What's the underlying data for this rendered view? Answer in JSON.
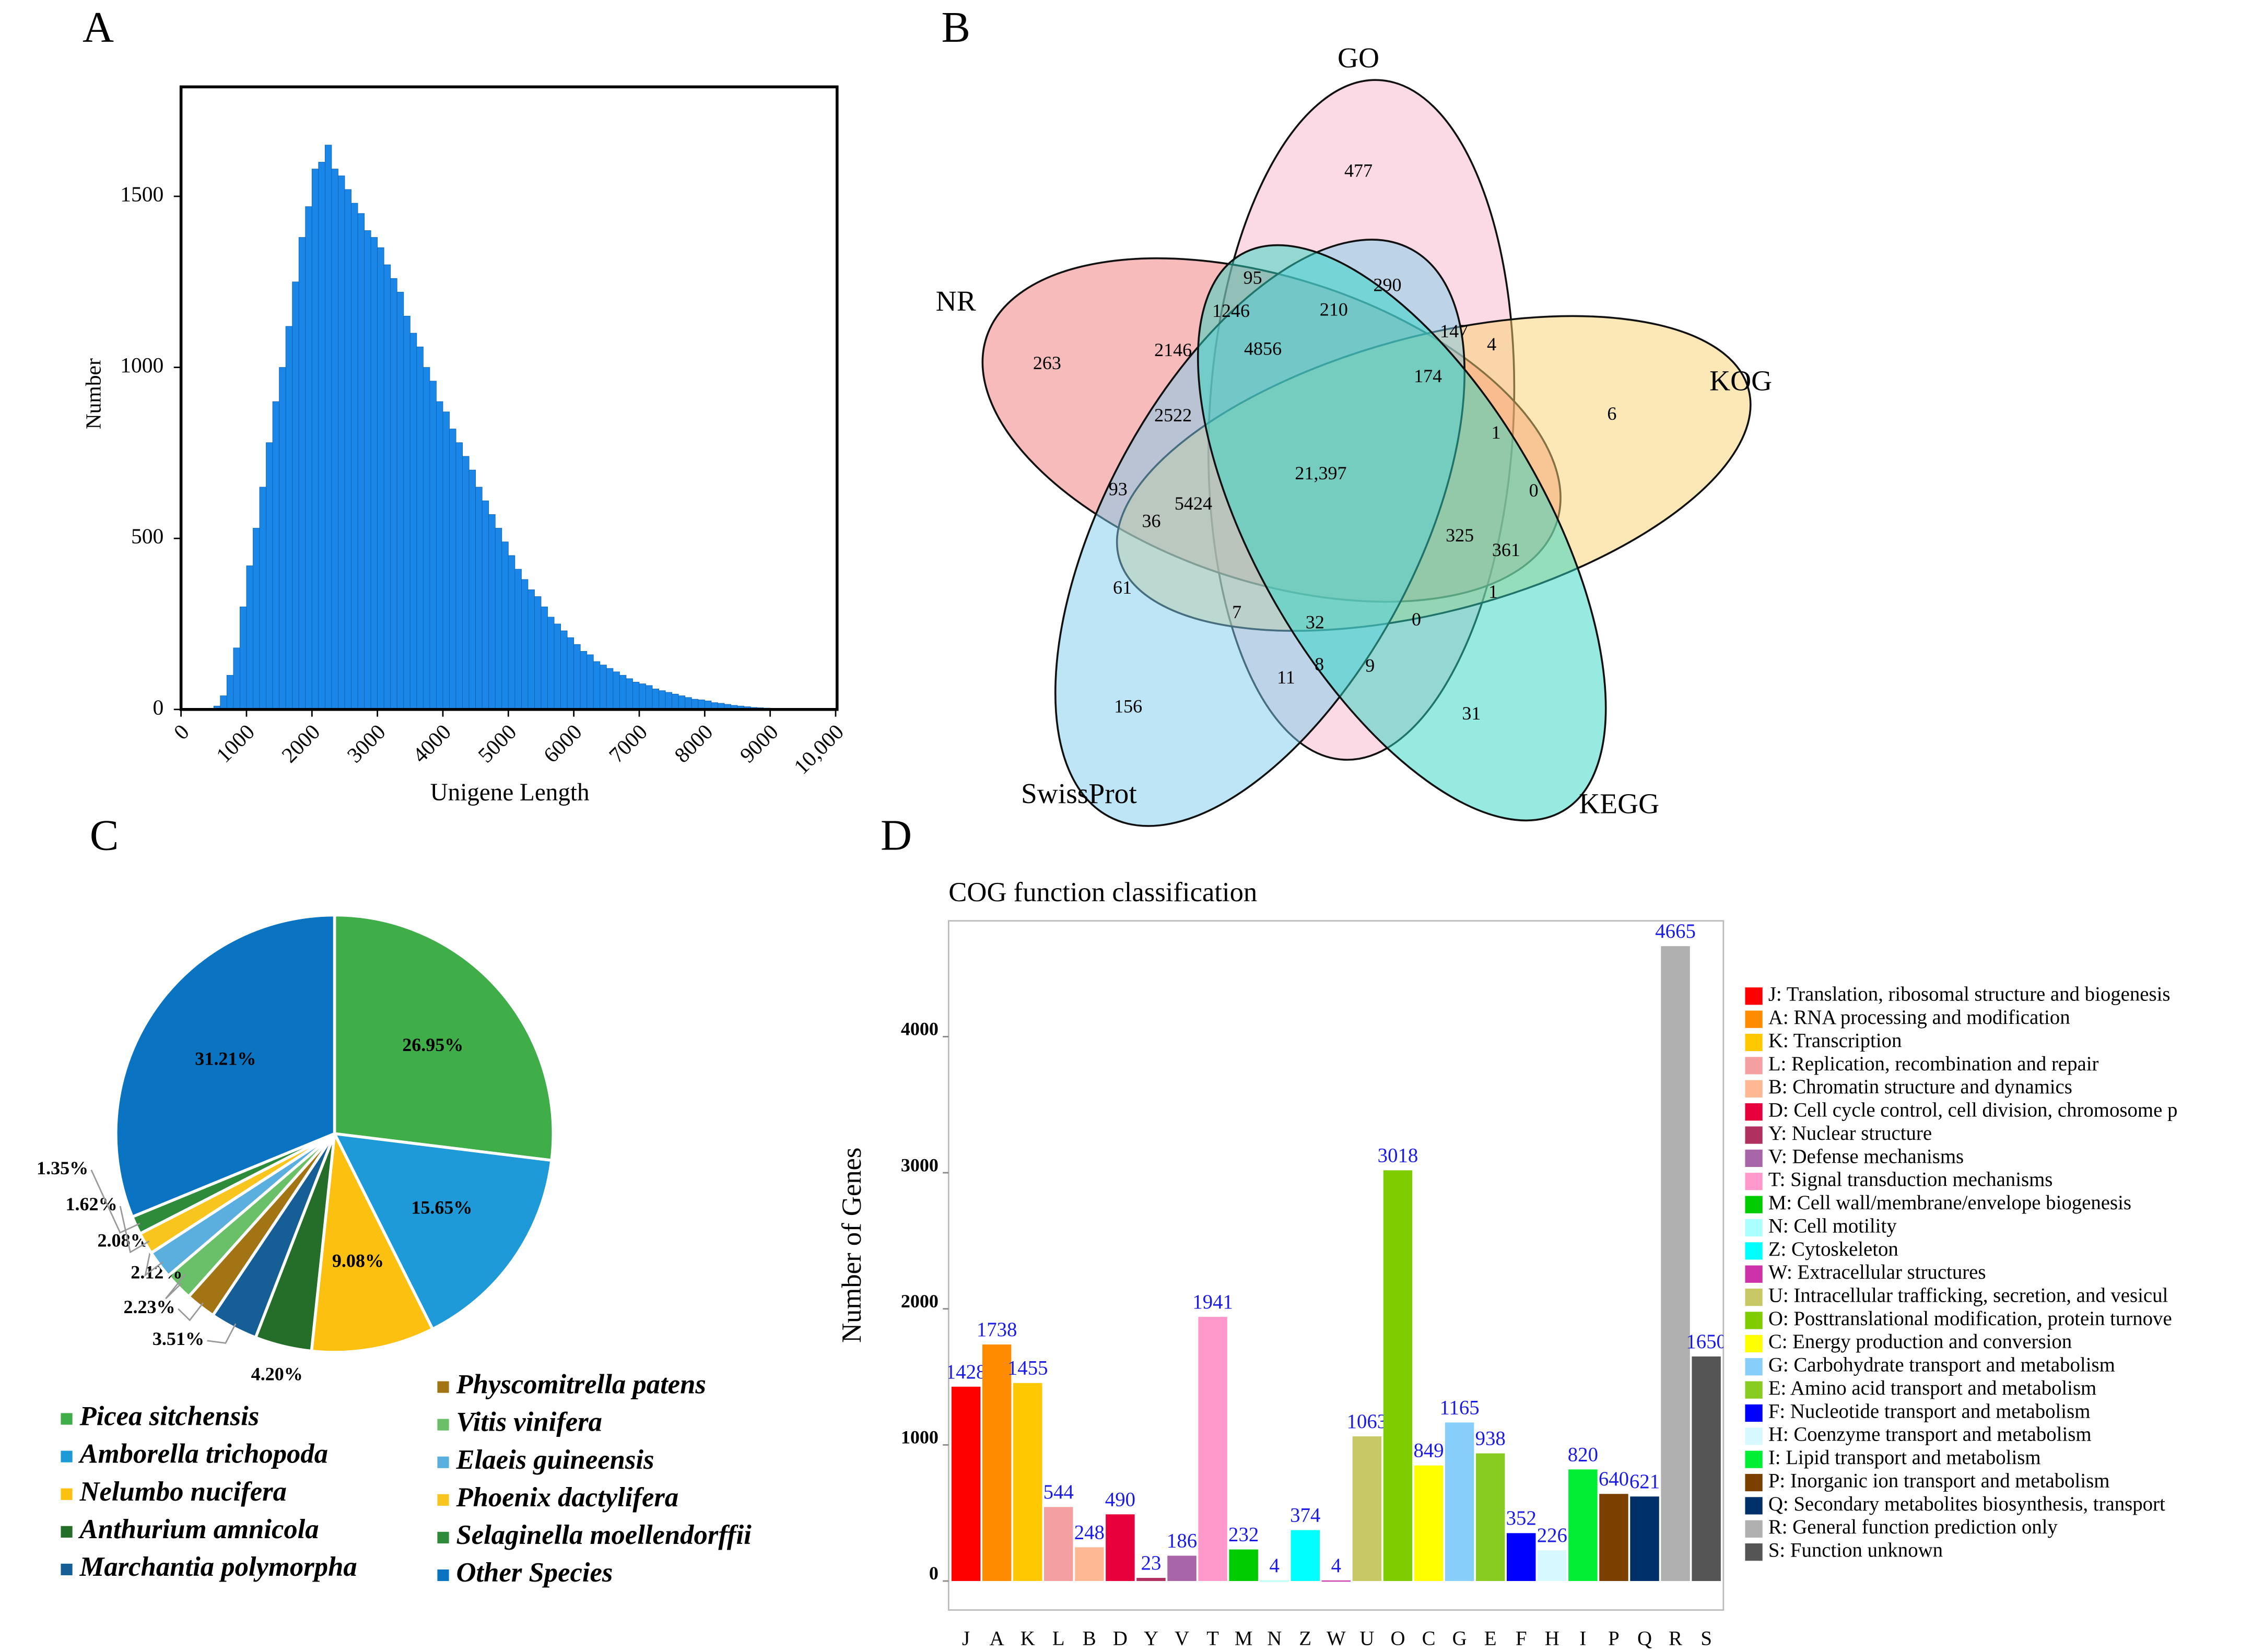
{
  "chart_data": [
    {
      "type": "histogram",
      "panel": "A",
      "xlabel": "Unigene Length",
      "ylabel": "Number",
      "color": "#1a86e8",
      "bins": [
        500,
        600,
        700,
        800,
        900,
        1000,
        1100,
        1200,
        1300,
        1400,
        1500,
        1600,
        1700,
        1800,
        1900,
        2000,
        2100,
        2200,
        2300,
        2400,
        2500,
        2600,
        2700,
        2800,
        2900,
        3000,
        3100,
        3200,
        3300,
        3400,
        3500,
        3600,
        3700,
        3800,
        3900,
        4000,
        4100,
        4200,
        4300,
        4400,
        4500,
        4600,
        4700,
        4800,
        4900,
        5000,
        5100,
        5200,
        5300,
        5400,
        5500,
        5600,
        5700,
        5800,
        5900,
        6000,
        6100,
        6200,
        6300,
        6400,
        6500,
        6600,
        6700,
        6800,
        6900,
        7000,
        7100,
        7200,
        7300,
        7400,
        7500,
        7600,
        7700,
        7800,
        7900,
        8000,
        8100,
        8200,
        8300,
        8400,
        8500,
        8600,
        8700,
        8800,
        8900,
        9000
      ],
      "counts": [
        10,
        40,
        100,
        180,
        300,
        420,
        530,
        650,
        780,
        900,
        1000,
        1120,
        1250,
        1380,
        1470,
        1580,
        1600,
        1650,
        1580,
        1560,
        1520,
        1480,
        1450,
        1400,
        1380,
        1350,
        1300,
        1260,
        1220,
        1150,
        1100,
        1060,
        1000,
        960,
        900,
        870,
        820,
        780,
        740,
        700,
        650,
        610,
        570,
        530,
        490,
        450,
        410,
        380,
        350,
        330,
        300,
        270,
        250,
        230,
        210,
        190,
        170,
        160,
        140,
        130,
        120,
        110,
        100,
        90,
        80,
        75,
        70,
        60,
        55,
        50,
        45,
        40,
        35,
        30,
        28,
        25,
        20,
        18,
        15,
        12,
        10,
        8,
        6,
        5,
        4
      ],
      "xlim": [
        0,
        10000
      ],
      "ylim": [
        0,
        1820
      ],
      "xticks": [
        0,
        1000,
        2000,
        3000,
        4000,
        5000,
        6000,
        7000,
        8000,
        9000,
        {
          "value": 10000,
          "label": "10,000"
        }
      ],
      "yticks": [
        0,
        500,
        1000,
        1500
      ]
    },
    {
      "type": "venn",
      "panel": "B",
      "sets": [
        {
          "name": "GO",
          "color": "#f9b6cc"
        },
        {
          "name": "NR",
          "color": "#f07878"
        },
        {
          "name": "KOG",
          "color": "#f9d070"
        },
        {
          "name": "SwissProt",
          "color": "#7ccbec"
        },
        {
          "name": "KEGG",
          "color": "#2ed6c2"
        }
      ],
      "values": [
        477,
        95,
        290,
        1246,
        210,
        147,
        4,
        263,
        2146,
        4856,
        174,
        6,
        2522,
        1,
        21397,
        93,
        5424,
        0,
        36,
        325,
        361,
        61,
        1,
        7,
        32,
        0,
        156,
        11,
        8,
        9,
        31
      ],
      "value_labels": [
        "477",
        "95",
        "290",
        "1246",
        "210",
        "147",
        "4",
        "263",
        "2146",
        "4856",
        "174",
        "6",
        "2522",
        "1",
        "21,397",
        "93",
        "5424",
        "0",
        "36",
        "325",
        "361",
        "61",
        "1",
        "7",
        "32",
        "0",
        "156",
        "11",
        "8",
        "9",
        "31"
      ]
    },
    {
      "type": "pie",
      "panel": "C",
      "categories": [
        "Picea sitchensis",
        "Amborella trichopoda",
        "Nelumbo nucifera",
        "Anthurium amnicola",
        "Marchantia polymorpha",
        "Physcomitrella patens",
        "Vitis vinifera",
        "Elaeis guineensis",
        "Phoenix dactylifera",
        "Selaginella moellendorffii",
        "Other Species"
      ],
      "values": [
        26.95,
        15.65,
        9.08,
        4.2,
        3.51,
        2.23,
        2.12,
        2.08,
        1.62,
        1.35,
        31.21
      ],
      "value_labels": [
        "26.95%",
        "15.65%",
        "9.08%",
        "4.20%",
        "3.51%",
        "2.23%",
        "2.12%",
        "2.08%",
        "1.62%",
        "1.35%",
        "31.21%"
      ],
      "colors": [
        "#3fae49",
        "#1f9ad8",
        "#fcc010",
        "#256e2a",
        "#155e96",
        "#a37413",
        "#6ac069",
        "#5aafdf",
        "#f7c51e",
        "#2e8b3a",
        "#0b74c2"
      ]
    },
    {
      "type": "bar",
      "panel": "D",
      "title": "COG function classification",
      "ylabel": "Number of Genes",
      "categories": [
        "J",
        "A",
        "K",
        "L",
        "B",
        "D",
        "Y",
        "V",
        "T",
        "M",
        "N",
        "Z",
        "W",
        "U",
        "O",
        "C",
        "G",
        "E",
        "F",
        "H",
        "I",
        "P",
        "Q",
        "R",
        "S"
      ],
      "values": [
        1428,
        1738,
        1455,
        544,
        248,
        490,
        23,
        186,
        1941,
        232,
        4,
        374,
        4,
        1063,
        3018,
        849,
        1165,
        938,
        352,
        226,
        820,
        640,
        621,
        4665,
        1650
      ],
      "colors": [
        "#ff0000",
        "#ff8c00",
        "#ffc800",
        "#f4a0a0",
        "#ffb894",
        "#e8003c",
        "#b03060",
        "#a865a8",
        "#ff99cc",
        "#00cc00",
        "#aaffff",
        "#00ffff",
        "#cc33aa",
        "#c8c864",
        "#7fcc00",
        "#ffff00",
        "#87cefa",
        "#88cc22",
        "#0000ff",
        "#d8f8ff",
        "#00ee33",
        "#7b3f00",
        "#00306a",
        "#b0b0b0",
        "#555555"
      ],
      "legend": [
        "J: Translation, ribosomal structure and biogenesis",
        "A: RNA processing and modification",
        "K: Transcription",
        "L: Replication, recombination and repair",
        "B: Chromatin structure and dynamics",
        "D: Cell cycle control, cell division, chromosome p",
        "Y: Nuclear structure",
        "V: Defense mechanisms",
        "T: Signal transduction mechanisms",
        "M: Cell wall/membrane/envelope biogenesis",
        "N: Cell motility",
        "Z: Cytoskeleton",
        "W: Extracellular structures",
        "U: Intracellular trafficking, secretion, and vesicul",
        "O: Posttranslational modification, protein turnove",
        "C: Energy production and conversion",
        "G: Carbohydrate transport and metabolism",
        "E: Amino acid transport and metabolism",
        "F: Nucleotide transport and metabolism",
        "H: Coenzyme transport and metabolism",
        "I: Lipid transport and metabolism",
        "P: Inorganic ion transport and metabolism",
        "Q: Secondary metabolites biosynthesis, transport",
        "R: General function prediction only",
        "S: Function unknown"
      ],
      "ylim": [
        -213,
        4851
      ],
      "yticks": [
        0,
        1000,
        2000,
        3000,
        4000
      ]
    }
  ]
}
